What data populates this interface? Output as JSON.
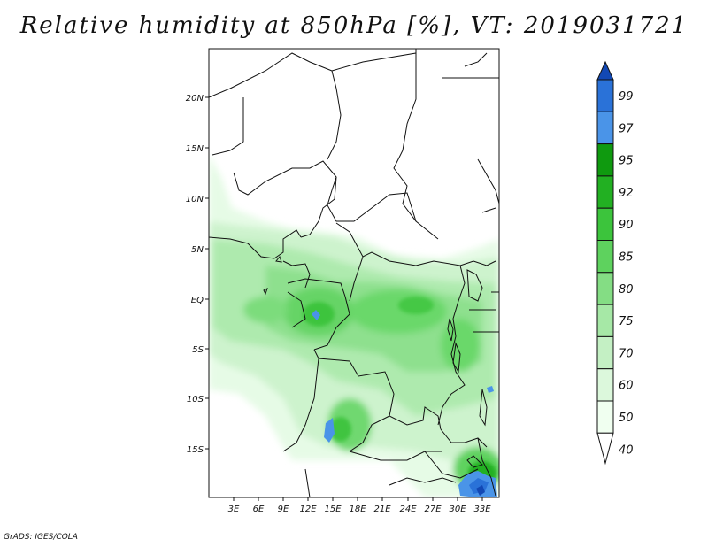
{
  "title": "Relative humidity at 850hPa [%], VT: 2019031721",
  "credit": "GrADS: IGES/COLA",
  "map": {
    "lon_labels": [
      "3E",
      "6E",
      "9E",
      "12E",
      "15E",
      "18E",
      "21E",
      "24E",
      "27E",
      "30E",
      "33E"
    ],
    "lat_labels": [
      "20N",
      "15N",
      "10N",
      "5N",
      "EQ",
      "5S",
      "10S",
      "15S"
    ],
    "lon_range": [
      0,
      35
    ],
    "lat_range": [
      -20,
      25
    ]
  },
  "colorbar": {
    "levels": [
      "99",
      "97",
      "95",
      "92",
      "90",
      "85",
      "80",
      "75",
      "70",
      "60",
      "50",
      "40"
    ],
    "colors": {
      "40": "#f0fff0",
      "50": "#dcf8dc",
      "60": "#c4f0c4",
      "70": "#a6e8a6",
      "75": "#84dd84",
      "80": "#5ed25e",
      "85": "#3cc43c",
      "90": "#22b022",
      "92": "#0f9a0f",
      "95": "#4a94e8",
      "97": "#2a72d8",
      "99": "#1248b4"
    }
  }
}
